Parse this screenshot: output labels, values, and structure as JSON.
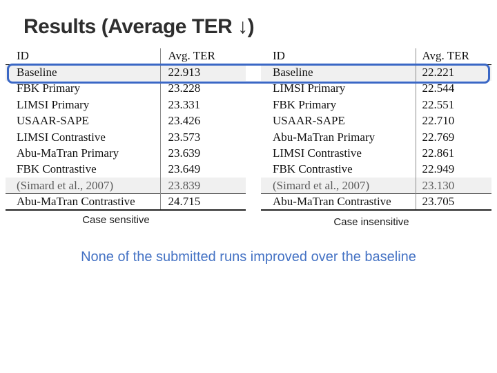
{
  "slide": {
    "title_text": "Results (Average TER ",
    "title_arrow": "↓",
    "title_close": ")",
    "conclusion": "None of the submitted runs improved over the baseline"
  },
  "colors": {
    "highlight_border": "#3a67c5",
    "conclusion_text": "#4472c4",
    "shaded_row_bg": "#f0f0f0",
    "ref_row_text": "#595959"
  },
  "tables": [
    {
      "caption": "Case sensitive",
      "headers": {
        "id": "ID",
        "ter": "Avg. TER"
      },
      "rows": [
        {
          "id": "Baseline",
          "ter": "22.913"
        },
        {
          "id": "FBK Primary",
          "ter": "23.228"
        },
        {
          "id": "LIMSI Primary",
          "ter": "23.331"
        },
        {
          "id": "USAAR-SAPE",
          "ter": "23.426"
        },
        {
          "id": "LIMSI Contrastive",
          "ter": "23.573"
        },
        {
          "id": "Abu-MaTran Primary",
          "ter": "23.639"
        },
        {
          "id": "FBK Contrastive",
          "ter": "23.649"
        },
        {
          "id": "(Simard et al., 2007)",
          "ter": "23.839"
        },
        {
          "id": "Abu-MaTran Contrastive",
          "ter": "24.715"
        }
      ]
    },
    {
      "caption": "Case insensitive",
      "headers": {
        "id": "ID",
        "ter": "Avg. TER"
      },
      "rows": [
        {
          "id": "Baseline",
          "ter": "22.221"
        },
        {
          "id": "LIMSI Primary",
          "ter": "22.544"
        },
        {
          "id": "FBK Primary",
          "ter": "22.551"
        },
        {
          "id": "USAAR-SAPE",
          "ter": "22.710"
        },
        {
          "id": "Abu-MaTran Primary",
          "ter": "22.769"
        },
        {
          "id": "LIMSI Contrastive",
          "ter": "22.861"
        },
        {
          "id": "FBK Contrastive",
          "ter": "22.949"
        },
        {
          "id": "(Simard et al., 2007)",
          "ter": "23.130"
        },
        {
          "id": "Abu-MaTran Contrastive",
          "ter": "23.705"
        }
      ]
    }
  ]
}
